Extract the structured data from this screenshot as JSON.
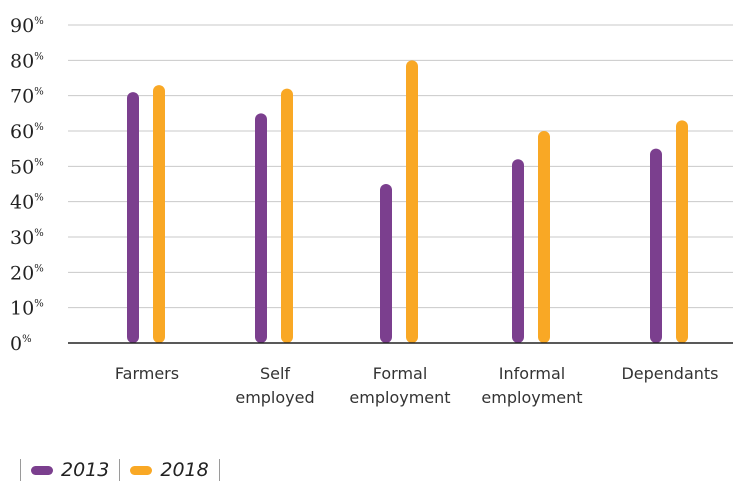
{
  "chart_data": {
    "type": "bar",
    "categories": [
      [
        "Farmers"
      ],
      [
        "Self",
        "employed"
      ],
      [
        "Formal",
        "employment"
      ],
      [
        "Informal",
        "employment"
      ],
      [
        "Dependants"
      ]
    ],
    "series": [
      {
        "name": "2013",
        "color": "#7B3F8E",
        "values": [
          71,
          65,
          45,
          52,
          55
        ]
      },
      {
        "name": "2018",
        "color": "#F9A825",
        "values": [
          73,
          72,
          80,
          60,
          63
        ]
      }
    ],
    "ylim": [
      0,
      90
    ],
    "yticks": [
      0,
      10,
      20,
      30,
      40,
      50,
      60,
      70,
      80,
      90
    ],
    "ytick_suffix": "%",
    "grid": true,
    "legend_position": "bottom-left",
    "xlabel": "",
    "ylabel": ""
  }
}
